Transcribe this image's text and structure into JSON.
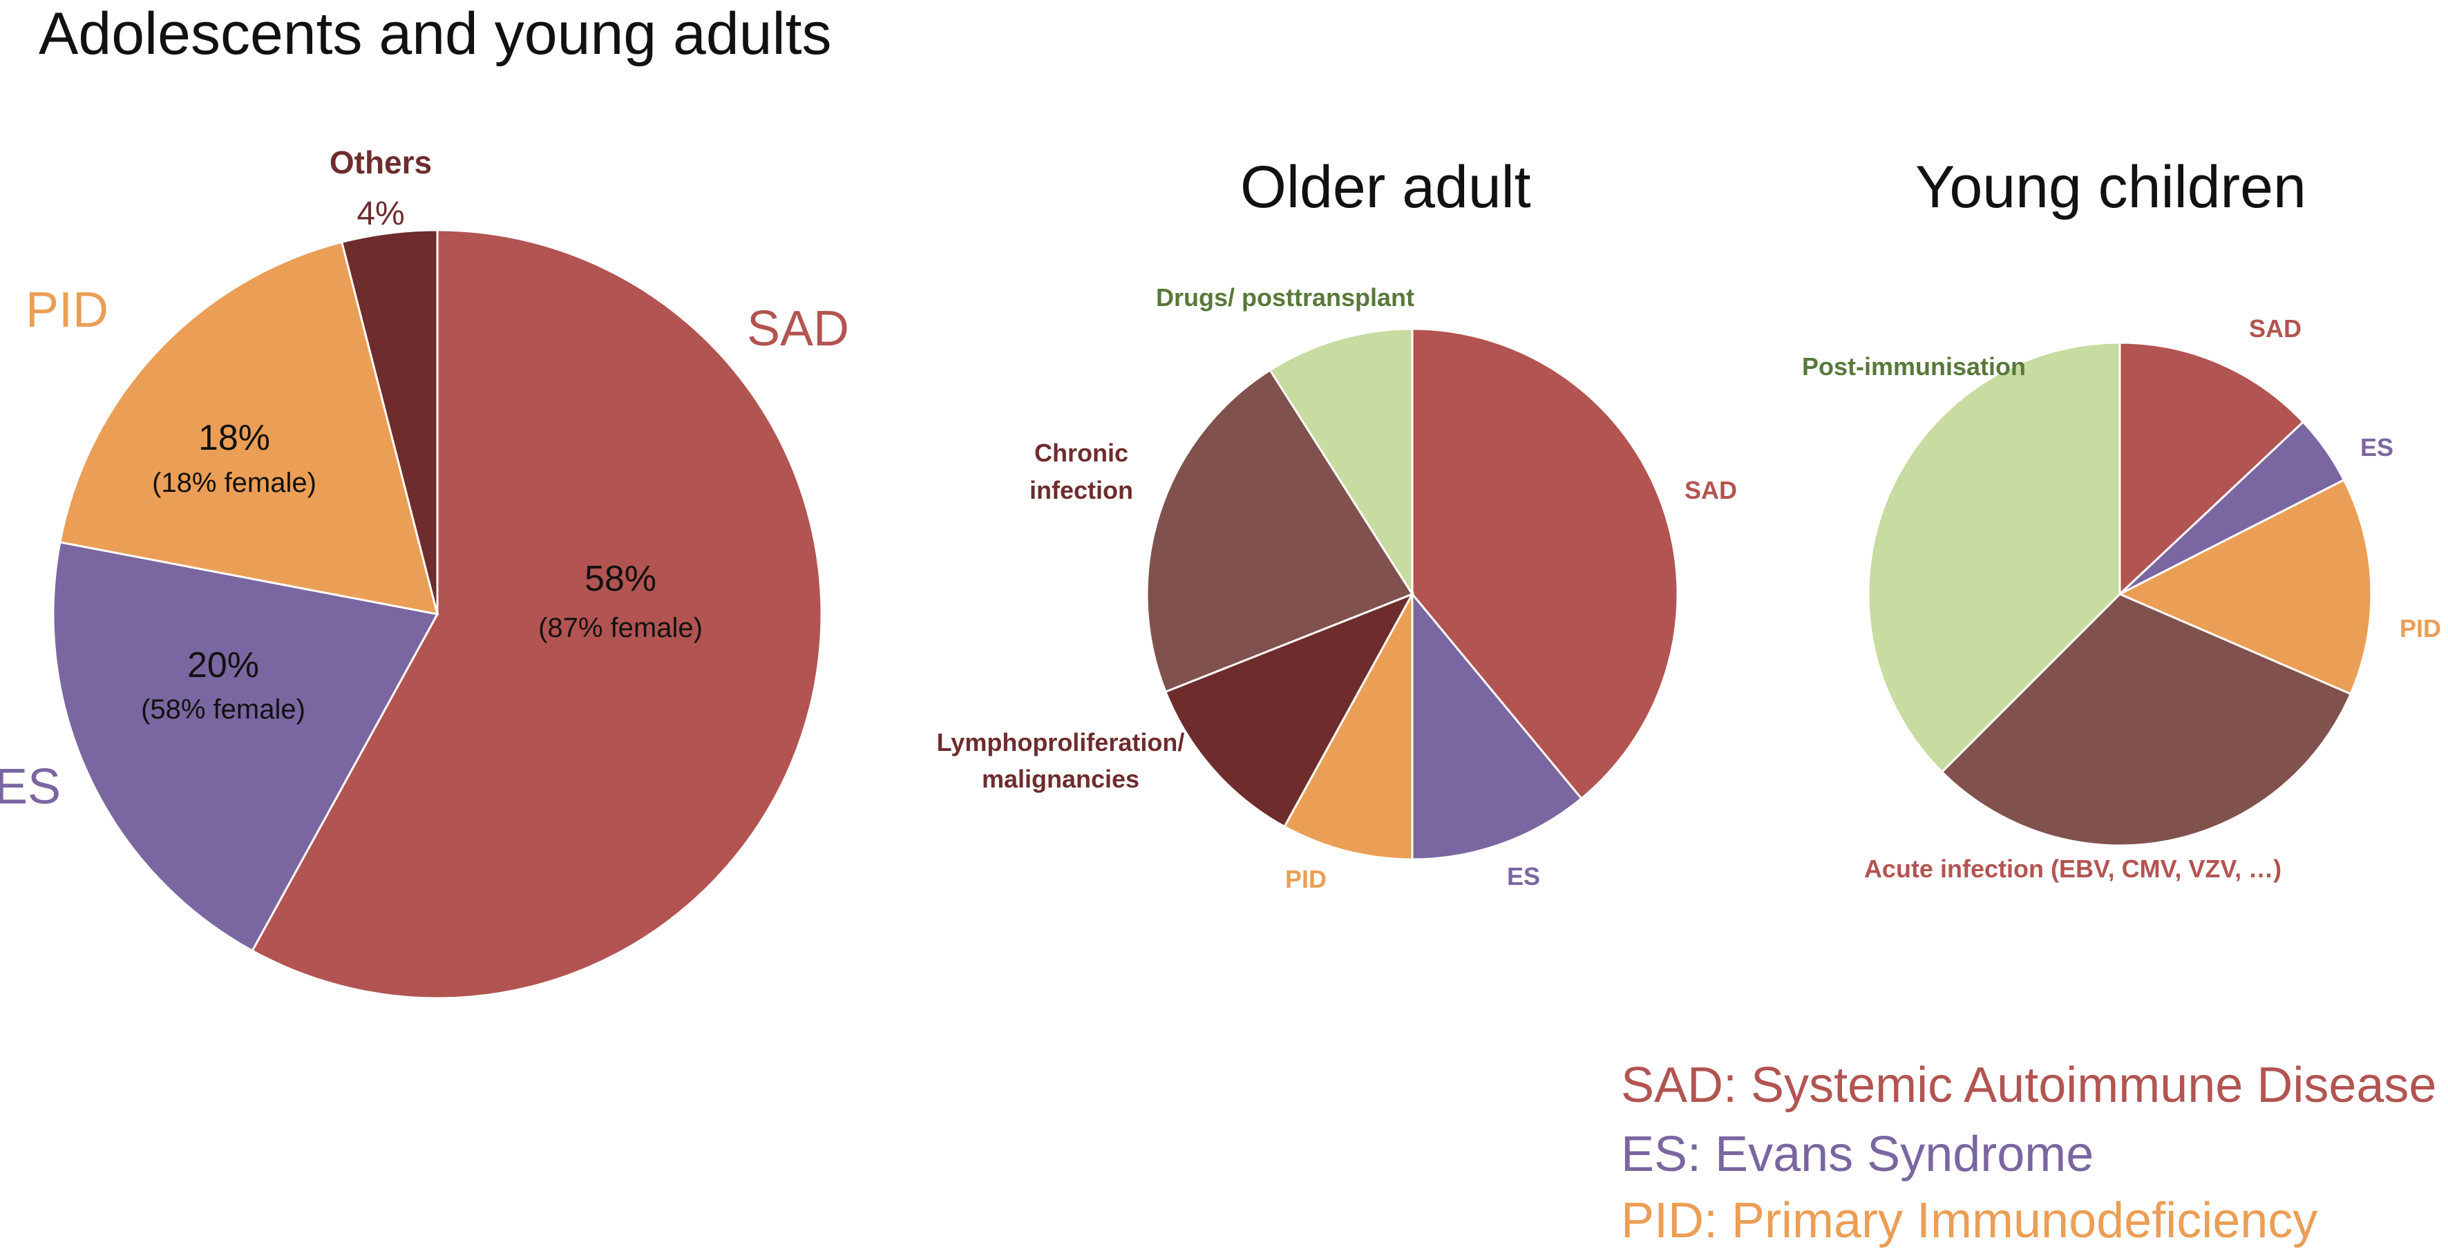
{
  "colors": {
    "sad": "#b25451",
    "es": "#7a66a0",
    "pid": "#eb9e55",
    "others": "#6e2c2c",
    "chronic_infection": "#80514d",
    "lympho": "#6e2c2c",
    "drugs": "#c8dba0",
    "post_immunisation": "#c8dba0",
    "acute_infection": "#80514d",
    "drugs_label": "#59783a",
    "stroke": "#ffffff"
  },
  "chart_data": [
    {
      "type": "pie",
      "title": "Adolescents and young adults",
      "slices": [
        {
          "key": "sad",
          "label": "SAD",
          "value": 58,
          "pct_text": "58%",
          "sub_text": "(87% female)",
          "color": "#b25451"
        },
        {
          "key": "es",
          "label": "ES",
          "value": 20,
          "pct_text": "20%",
          "sub_text": "(58% female)",
          "color": "#7a66a0"
        },
        {
          "key": "pid",
          "label": "PID",
          "value": 18,
          "pct_text": "18%",
          "sub_text": "(18% female)",
          "color": "#eb9e55"
        },
        {
          "key": "others",
          "label": "Others",
          "value": 4,
          "pct_text": "4%",
          "sub_text": "",
          "color": "#6e2c2c"
        }
      ]
    },
    {
      "type": "pie",
      "title": "Older adult",
      "slices": [
        {
          "key": "sad",
          "label": "SAD",
          "value": 39,
          "color": "#b25451"
        },
        {
          "key": "es",
          "label": "ES",
          "value": 11,
          "color": "#7a66a0"
        },
        {
          "key": "pid",
          "label": "PID",
          "value": 8,
          "color": "#eb9e55"
        },
        {
          "key": "lympho",
          "label": "Lymphoproliferation/ malignancies",
          "value": 11,
          "color": "#6e2c2c"
        },
        {
          "key": "chronic_infection",
          "label": "Chronic infection",
          "value": 22,
          "color": "#80514d"
        },
        {
          "key": "drugs",
          "label": "Drugs/ posttransplant",
          "value": 9,
          "color": "#c8dba0"
        }
      ]
    },
    {
      "type": "pie",
      "title": "Young children",
      "slices": [
        {
          "key": "sad",
          "label": "SAD",
          "value": 13,
          "color": "#b25451"
        },
        {
          "key": "es",
          "label": "ES",
          "value": 4.5,
          "color": "#7a66a0"
        },
        {
          "key": "pid",
          "label": "PID",
          "value": 14,
          "color": "#eb9e55"
        },
        {
          "key": "acute_infection",
          "label": "Acute infection (EBV, CMV, VZV, …)",
          "value": 31,
          "color": "#80514d"
        },
        {
          "key": "post_immunisation",
          "label": "Post-immunisation",
          "value": 37.5,
          "color": "#c8dba0"
        }
      ]
    }
  ],
  "legend": [
    {
      "text": "SAD: Systemic Autoimmune Disease",
      "color": "#b25451"
    },
    {
      "text": "ES: Evans Syndrome",
      "color": "#7a66a0"
    },
    {
      "text": "PID: Primary Immunodeficiency",
      "color": "#eb9e55"
    }
  ]
}
